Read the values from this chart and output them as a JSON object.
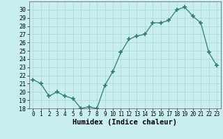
{
  "x": [
    0,
    1,
    2,
    3,
    4,
    5,
    6,
    7,
    8,
    9,
    10,
    11,
    12,
    13,
    14,
    15,
    16,
    17,
    18,
    19,
    20,
    21,
    22,
    23
  ],
  "y": [
    21.5,
    21.0,
    19.5,
    20.0,
    19.5,
    19.2,
    18.0,
    18.2,
    18.0,
    20.8,
    22.5,
    24.8,
    26.4,
    26.8,
    27.0,
    28.4,
    28.4,
    28.7,
    30.0,
    30.3,
    29.2,
    28.4,
    24.8,
    23.2
  ],
  "xlabel": "Humidex (Indice chaleur)",
  "xlim": [
    -0.5,
    23.5
  ],
  "ylim": [
    18,
    31
  ],
  "yticks": [
    18,
    19,
    20,
    21,
    22,
    23,
    24,
    25,
    26,
    27,
    28,
    29,
    30
  ],
  "xticks": [
    0,
    1,
    2,
    3,
    4,
    5,
    6,
    7,
    8,
    9,
    10,
    11,
    12,
    13,
    14,
    15,
    16,
    17,
    18,
    19,
    20,
    21,
    22,
    23
  ],
  "line_color": "#2e7d6e",
  "marker": "+",
  "bg_color": "#c8eef0",
  "grid_color": "#a8d8d0",
  "label_fontsize": 7.5
}
